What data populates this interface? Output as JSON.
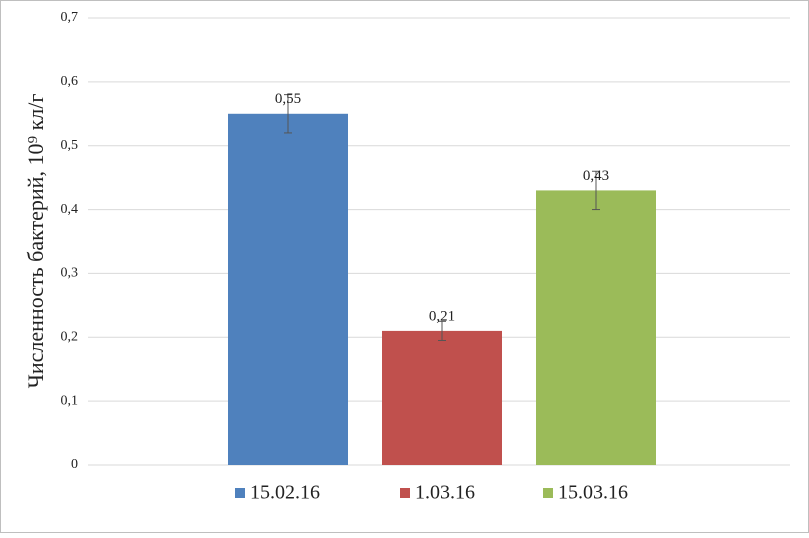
{
  "chart_data": {
    "type": "bar",
    "ylabel": "Численность бактерий, 10⁹ кл/г",
    "ylim": [
      0,
      0.7
    ],
    "yticks": [
      0,
      {
        "value": 0.1,
        "label": "0,1"
      },
      {
        "value": 0.2,
        "label": "0,2"
      },
      {
        "value": 0.3,
        "label": "0,3"
      },
      {
        "value": 0.4,
        "label": "0,4"
      },
      {
        "value": 0.5,
        "label": "0,5"
      },
      {
        "value": 0.6,
        "label": "0,6"
      },
      {
        "value": 0.7,
        "label": "0,7"
      }
    ],
    "grid": true,
    "legend": "bottom",
    "series": [
      {
        "name": "15.02.16",
        "color": "#4f81bd",
        "values": [
          0.55
        ],
        "errors": [
          0.03
        ],
        "value_labels": [
          "0,55"
        ]
      },
      {
        "name": "1.03.16",
        "color": "#c0504d",
        "values": [
          0.21
        ],
        "errors": [
          0.015
        ],
        "value_labels": [
          "0,21"
        ]
      },
      {
        "name": "15.03.16",
        "color": "#9bbb59",
        "values": [
          0.43
        ],
        "errors": [
          0.03
        ],
        "value_labels": [
          "0,43"
        ]
      }
    ]
  }
}
